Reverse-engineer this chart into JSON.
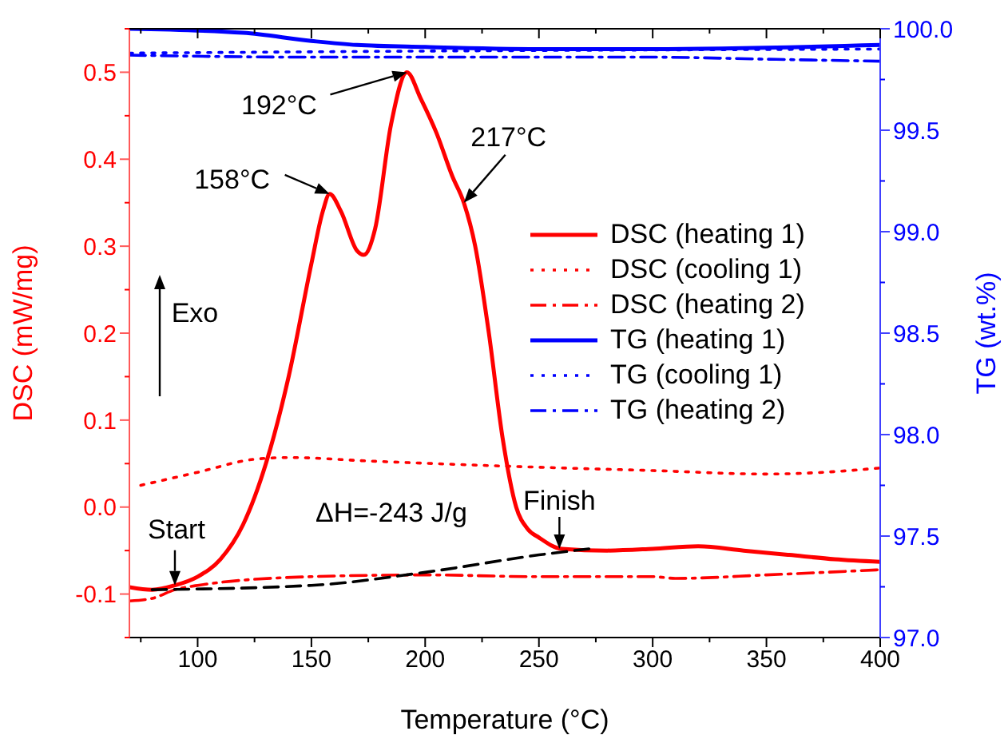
{
  "chart_data": {
    "type": "line",
    "xlabel": "Temperature (°C)",
    "ylabel": "DSC (mW/mg)",
    "y2label": "TG (wt.%)",
    "xlim": [
      70,
      400
    ],
    "xticks": [
      100,
      150,
      200,
      250,
      300,
      350,
      400
    ],
    "ylim": [
      -0.15,
      0.55
    ],
    "yticks": [
      -0.1,
      {
        "value": 0,
        "label": "0.0"
      },
      0.1,
      0.2,
      0.3,
      0.4,
      0.5
    ],
    "y2lim": [
      97,
      100
    ],
    "y2ticks": [
      {
        "value": 97,
        "label": "97.0"
      },
      97.5,
      {
        "value": 98,
        "label": "98.0"
      },
      98.5,
      {
        "value": 99,
        "label": "99.0"
      },
      99.5,
      {
        "value": 100,
        "label": "100.0"
      }
    ],
    "legend": "right",
    "marker": "none",
    "series": [
      {
        "name": "DSC (heating 1)",
        "color": "#ff0000",
        "line_style": "solid",
        "x": [
          70,
          80,
          90,
          100,
          110,
          120,
          130,
          140,
          150,
          155,
          158,
          163,
          170,
          173,
          178,
          185,
          192,
          198,
          205,
          212,
          217,
          222,
          228,
          234,
          240,
          245,
          250,
          260,
          280,
          300,
          320,
          340,
          360,
          380,
          400
        ],
        "values": [
          -0.092,
          -0.095,
          -0.09,
          -0.08,
          -0.06,
          -0.02,
          0.05,
          0.15,
          0.28,
          0.34,
          0.36,
          0.34,
          0.295,
          0.29,
          0.32,
          0.44,
          0.5,
          0.47,
          0.43,
          0.38,
          0.35,
          0.3,
          0.2,
          0.08,
          0.0,
          -0.025,
          -0.035,
          -0.048,
          -0.05,
          -0.048,
          -0.045,
          -0.05,
          -0.055,
          -0.06,
          -0.063
        ]
      },
      {
        "name": "DSC (cooling 1)",
        "color": "#ff0000",
        "line_style": "dotted",
        "x": [
          75,
          100,
          125,
          140,
          175,
          225,
          260,
          300,
          350,
          375,
          400
        ],
        "values": [
          0.025,
          0.04,
          0.055,
          0.057,
          0.053,
          0.048,
          0.045,
          0.042,
          0.038,
          0.04,
          0.045
        ]
      },
      {
        "name": "DSC (heating 2)",
        "color": "#ff0000",
        "line_style": "dashdot",
        "x": [
          70,
          80,
          90,
          100,
          150,
          200,
          250,
          300,
          310,
          350,
          400
        ],
        "values": [
          -0.108,
          -0.105,
          -0.095,
          -0.09,
          -0.08,
          -0.078,
          -0.08,
          -0.08,
          -0.082,
          -0.078,
          -0.072
        ]
      },
      {
        "name": "TG (heating 1)",
        "color": "#0000ff",
        "line_style": "solid",
        "axis": "y2",
        "x": [
          70,
          120,
          150,
          170,
          200,
          250,
          300,
          400
        ],
        "values": [
          100.0,
          99.98,
          99.94,
          99.92,
          99.91,
          99.9,
          99.9,
          99.92
        ]
      },
      {
        "name": "TG (cooling 1)",
        "color": "#0000ff",
        "line_style": "dotted",
        "axis": "y2",
        "x": [
          70,
          200,
          400
        ],
        "values": [
          99.88,
          99.89,
          99.9
        ]
      },
      {
        "name": "TG (heating 2)",
        "color": "#0000ff",
        "line_style": "dashdot",
        "axis": "y2",
        "x": [
          70,
          150,
          300,
          350,
          400
        ],
        "values": [
          99.87,
          99.86,
          99.86,
          99.85,
          99.84
        ]
      },
      {
        "color": "#000000",
        "line_style": "dashed",
        "x": [
          80,
          150,
          200,
          250,
          272
        ],
        "values": [
          -0.095,
          -0.09,
          -0.075,
          -0.055,
          -0.048
        ]
      }
    ],
    "annotations": [
      {
        "text": "192°C",
        "x": 192,
        "y": 0.5
      },
      {
        "text": "158°C",
        "x": 158,
        "y": 0.36
      },
      {
        "text": "217°C",
        "x": 217,
        "y": 0.35
      },
      {
        "text": "Start",
        "x": 90,
        "y": -0.09
      },
      {
        "text": "Finish",
        "x": 259,
        "y": -0.048
      },
      "ΔH=-243 J/g",
      "Exo"
    ]
  }
}
